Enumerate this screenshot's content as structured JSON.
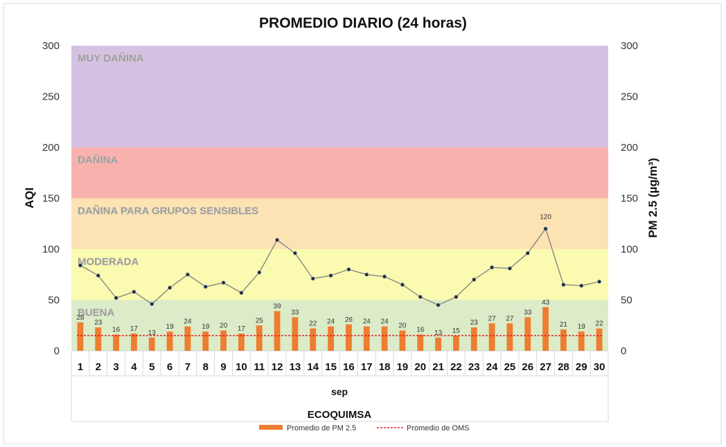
{
  "chart_data": {
    "type": "bar",
    "title": "PROMEDIO DIARIO (24 horas)",
    "ylabel_left": "AQI",
    "ylabel_right": "PM 2.5 (µg/m³)",
    "xlabel": "sep",
    "group_label": "ECOQUIMSA",
    "ylim": [
      0,
      300
    ],
    "yticks": [
      0,
      50,
      100,
      150,
      200,
      250,
      300
    ],
    "categories": [
      "1",
      "2",
      "3",
      "4",
      "5",
      "6",
      "7",
      "8",
      "9",
      "10",
      "11",
      "12",
      "13",
      "14",
      "15",
      "16",
      "17",
      "18",
      "19",
      "20",
      "21",
      "22",
      "23",
      "24",
      "25",
      "26",
      "27",
      "28",
      "29",
      "30"
    ],
    "bands": [
      {
        "label": "BUENA",
        "from": 0,
        "to": 50,
        "color": "#dcebc8"
      },
      {
        "label": "MODERADA",
        "from": 50,
        "to": 100,
        "color": "#fafab0"
      },
      {
        "label": "DAÑINA PARA GRUPOS SENSIBLES",
        "from": 100,
        "to": 150,
        "color": "#fbe3b3"
      },
      {
        "label": "DAÑINA",
        "from": 150,
        "to": 200,
        "color": "#f9b1ae"
      },
      {
        "label": "MUY DAÑINA",
        "from": 200,
        "to": 300,
        "color": "#d5c2e3"
      }
    ],
    "series": [
      {
        "name": "Promedio de PM 2.5",
        "type": "bar",
        "axis": "right",
        "color": "#ed7d31",
        "values": [
          28,
          23,
          16,
          17,
          13,
          19,
          24,
          19,
          20,
          17,
          25,
          39,
          33,
          22,
          24,
          26,
          24,
          24,
          20,
          16,
          13,
          15,
          23,
          27,
          27,
          33,
          43,
          21,
          19,
          22
        ]
      },
      {
        "name": "AQI",
        "type": "line",
        "axis": "left",
        "color": "#7f7f7f",
        "marker_color": "#1f2a44",
        "values": [
          84,
          74,
          52,
          58,
          46,
          62,
          75,
          63,
          67,
          57,
          77,
          109,
          96,
          71,
          74,
          80,
          75,
          73,
          65,
          53,
          45,
          53,
          70,
          82,
          81,
          96,
          120,
          65,
          64,
          68
        ],
        "labeled_points": [
          {
            "index": 26,
            "label": "120"
          }
        ]
      },
      {
        "name": "Promedio de OMS",
        "type": "hline",
        "axis": "right",
        "color": "#e02020",
        "value": 15
      }
    ],
    "legend": {
      "position": "bottom",
      "items": [
        "Promedio de PM 2.5",
        "Promedio de OMS"
      ]
    }
  }
}
